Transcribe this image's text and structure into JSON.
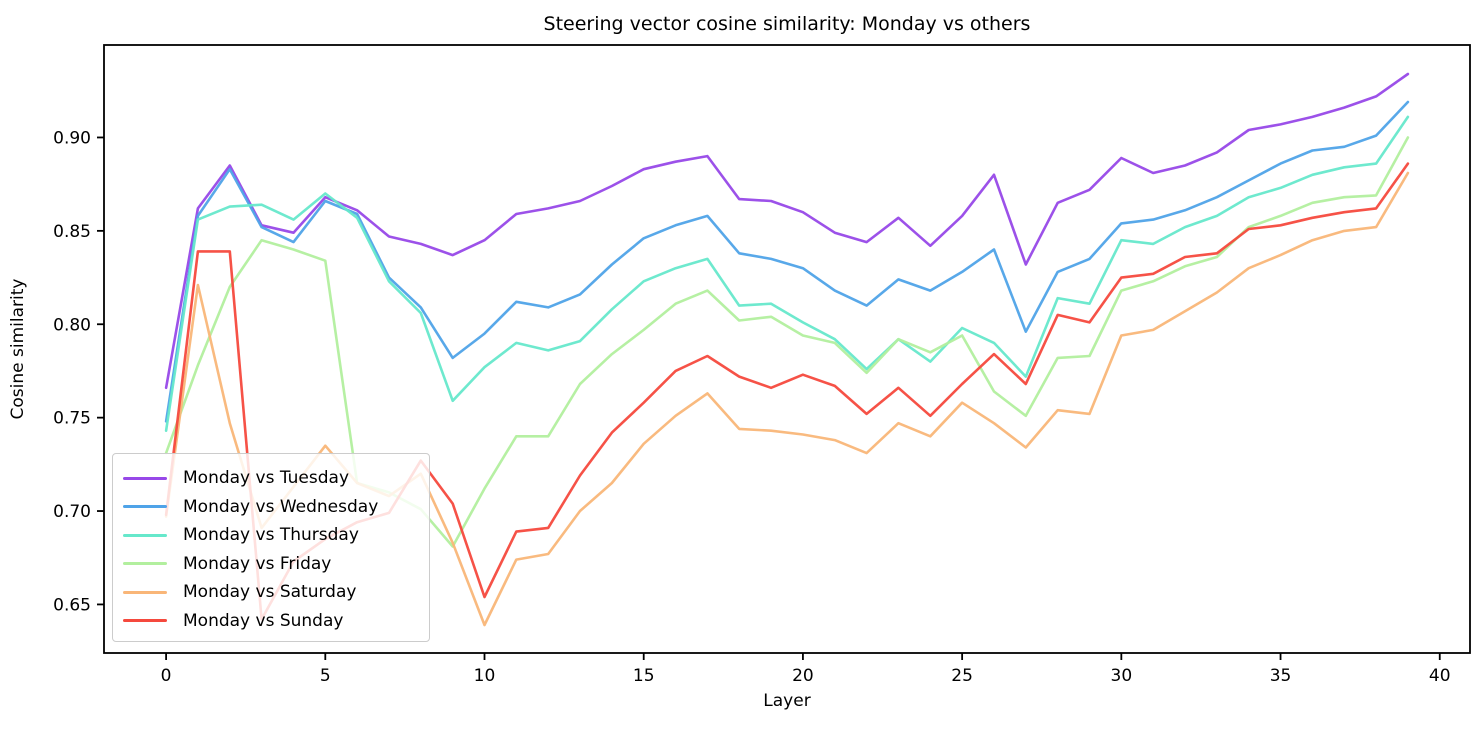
{
  "figure": {
    "title": "Steering vector cosine similarity: Monday vs others",
    "xlabel": "Layer",
    "ylabel": "Cosine similarity"
  },
  "chart_data": {
    "type": "line",
    "title": "Steering vector cosine similarity: Monday vs others",
    "xlabel": "Layer",
    "ylabel": "Cosine similarity",
    "grid": false,
    "legend_position": "lower left",
    "xlim": [
      -1.95,
      40.95
    ],
    "ylim": [
      0.624,
      0.9495
    ],
    "xticks": [
      0,
      5,
      10,
      15,
      20,
      25,
      30,
      35,
      40
    ],
    "yticks": [
      0.65,
      0.7,
      0.75,
      0.8,
      0.85,
      0.9
    ],
    "x": [
      0,
      1,
      2,
      3,
      4,
      5,
      6,
      7,
      8,
      9,
      10,
      11,
      12,
      13,
      14,
      15,
      16,
      17,
      18,
      19,
      20,
      21,
      22,
      23,
      24,
      25,
      26,
      27,
      28,
      29,
      30,
      31,
      32,
      33,
      34,
      35,
      36,
      37,
      38,
      39
    ],
    "series": [
      {
        "name": "Monday vs Tuesday",
        "color": "#9748e8",
        "values": [
          0.766,
          0.862,
          0.885,
          0.853,
          0.849,
          0.868,
          0.861,
          0.847,
          0.843,
          0.837,
          0.845,
          0.859,
          0.862,
          0.866,
          0.874,
          0.883,
          0.887,
          0.89,
          0.867,
          0.866,
          0.86,
          0.849,
          0.844,
          0.857,
          0.842,
          0.858,
          0.88,
          0.832,
          0.865,
          0.872,
          0.889,
          0.881,
          0.885,
          0.892,
          0.904,
          0.907,
          0.911,
          0.916,
          0.922,
          0.934
        ]
      },
      {
        "name": "Monday vs Wednesday",
        "color": "#4fa3e8",
        "values": [
          0.748,
          0.858,
          0.883,
          0.852,
          0.844,
          0.866,
          0.859,
          0.825,
          0.809,
          0.782,
          0.795,
          0.812,
          0.809,
          0.816,
          0.832,
          0.846,
          0.853,
          0.858,
          0.838,
          0.835,
          0.83,
          0.818,
          0.81,
          0.824,
          0.818,
          0.828,
          0.84,
          0.796,
          0.828,
          0.835,
          0.854,
          0.856,
          0.861,
          0.868,
          0.877,
          0.886,
          0.893,
          0.895,
          0.901,
          0.919
        ]
      },
      {
        "name": "Monday vs Thursday",
        "color": "#66e8cb",
        "values": [
          0.743,
          0.856,
          0.863,
          0.864,
          0.856,
          0.87,
          0.857,
          0.823,
          0.806,
          0.759,
          0.777,
          0.79,
          0.786,
          0.791,
          0.808,
          0.823,
          0.83,
          0.835,
          0.81,
          0.811,
          0.801,
          0.792,
          0.776,
          0.792,
          0.78,
          0.798,
          0.79,
          0.772,
          0.814,
          0.811,
          0.845,
          0.843,
          0.852,
          0.858,
          0.868,
          0.873,
          0.88,
          0.884,
          0.886,
          0.911
        ]
      },
      {
        "name": "Monday vs Friday",
        "color": "#b2ef9e",
        "values": [
          0.731,
          0.778,
          0.82,
          0.845,
          0.84,
          0.834,
          0.715,
          0.71,
          0.701,
          0.681,
          0.712,
          0.74,
          0.74,
          0.768,
          0.784,
          0.797,
          0.811,
          0.818,
          0.802,
          0.804,
          0.794,
          0.79,
          0.774,
          0.792,
          0.785,
          0.794,
          0.764,
          0.751,
          0.782,
          0.783,
          0.818,
          0.823,
          0.831,
          0.836,
          0.852,
          0.858,
          0.865,
          0.868,
          0.869,
          0.9
        ]
      },
      {
        "name": "Monday vs Saturday",
        "color": "#f9b678",
        "values": [
          0.697,
          0.821,
          0.747,
          0.691,
          0.713,
          0.735,
          0.715,
          0.708,
          0.72,
          0.683,
          0.639,
          0.674,
          0.677,
          0.7,
          0.715,
          0.736,
          0.751,
          0.763,
          0.744,
          0.743,
          0.741,
          0.738,
          0.731,
          0.747,
          0.74,
          0.758,
          0.747,
          0.734,
          0.754,
          0.752,
          0.794,
          0.797,
          0.807,
          0.817,
          0.83,
          0.837,
          0.845,
          0.85,
          0.852,
          0.881
        ]
      },
      {
        "name": "Monday vs Sunday",
        "color": "#f5493d",
        "values": [
          0.698,
          0.839,
          0.839,
          0.642,
          0.673,
          0.685,
          0.694,
          0.699,
          0.727,
          0.704,
          0.654,
          0.689,
          0.691,
          0.719,
          0.742,
          0.758,
          0.775,
          0.783,
          0.772,
          0.766,
          0.773,
          0.767,
          0.752,
          0.766,
          0.751,
          0.768,
          0.784,
          0.768,
          0.805,
          0.801,
          0.825,
          0.827,
          0.836,
          0.838,
          0.851,
          0.853,
          0.857,
          0.86,
          0.862,
          0.886
        ]
      }
    ]
  },
  "legend": {
    "items": [
      {
        "label": "Monday vs Tuesday",
        "color": "#9748e8"
      },
      {
        "label": "Monday vs Wednesday",
        "color": "#4fa3e8"
      },
      {
        "label": "Monday vs Thursday",
        "color": "#66e8cb"
      },
      {
        "label": "Monday vs Friday",
        "color": "#b2ef9e"
      },
      {
        "label": "Monday vs Saturday",
        "color": "#f9b678"
      },
      {
        "label": "Monday vs Sunday",
        "color": "#f5493d"
      }
    ]
  }
}
